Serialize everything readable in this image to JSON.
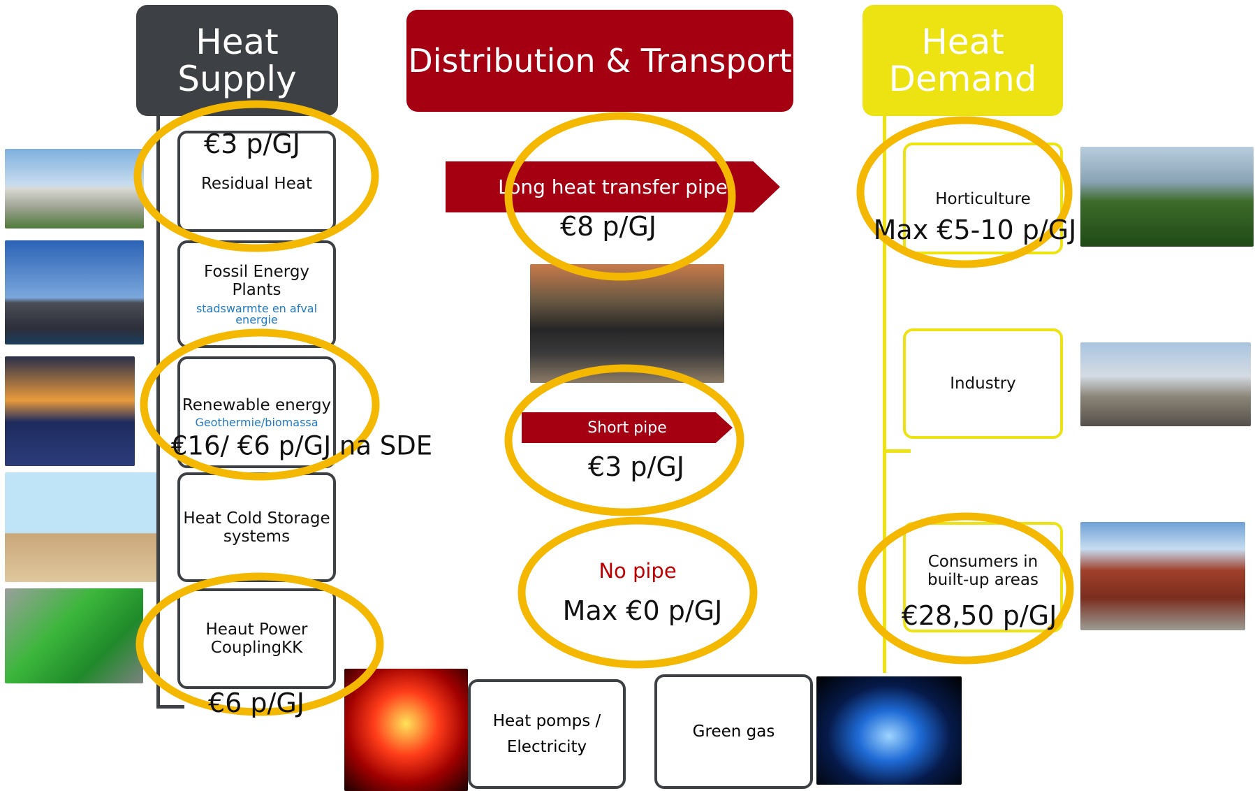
{
  "supply": {
    "header": "Heat Supply",
    "items": [
      {
        "label": "Residual Heat",
        "price": "€3 p/GJ"
      },
      {
        "label": "Fossil Energy Plants",
        "note": "stadswarmte en afval energie"
      },
      {
        "label": "Renewable energy",
        "note": "Geothermie/biomassa",
        "price": "€16/ €6 p/GJ na SDE"
      },
      {
        "label": "Heat Cold Storage systems"
      },
      {
        "label": "Heaut Power CouplingKK",
        "price": "€6 p/GJ"
      }
    ]
  },
  "distribution": {
    "header": "Distribution & Transport",
    "items": [
      {
        "label": "Long heat transfer pipe",
        "price": "€8 p/GJ"
      },
      {
        "label": "Short  pipe",
        "price": "€3 p/GJ"
      },
      {
        "label": "No pipe",
        "price": "Max €0 p/GJ"
      }
    ]
  },
  "demand": {
    "header": "Heat Demand",
    "items": [
      {
        "label": "Horticulture",
        "price": "Max €5-10 p/GJ"
      },
      {
        "label": "Industry"
      },
      {
        "label": "Consumers in built-up areas",
        "price": "€28,50 p/GJ"
      }
    ]
  },
  "alternatives": [
    "Heat pomps / Electricity",
    "Green gas"
  ]
}
